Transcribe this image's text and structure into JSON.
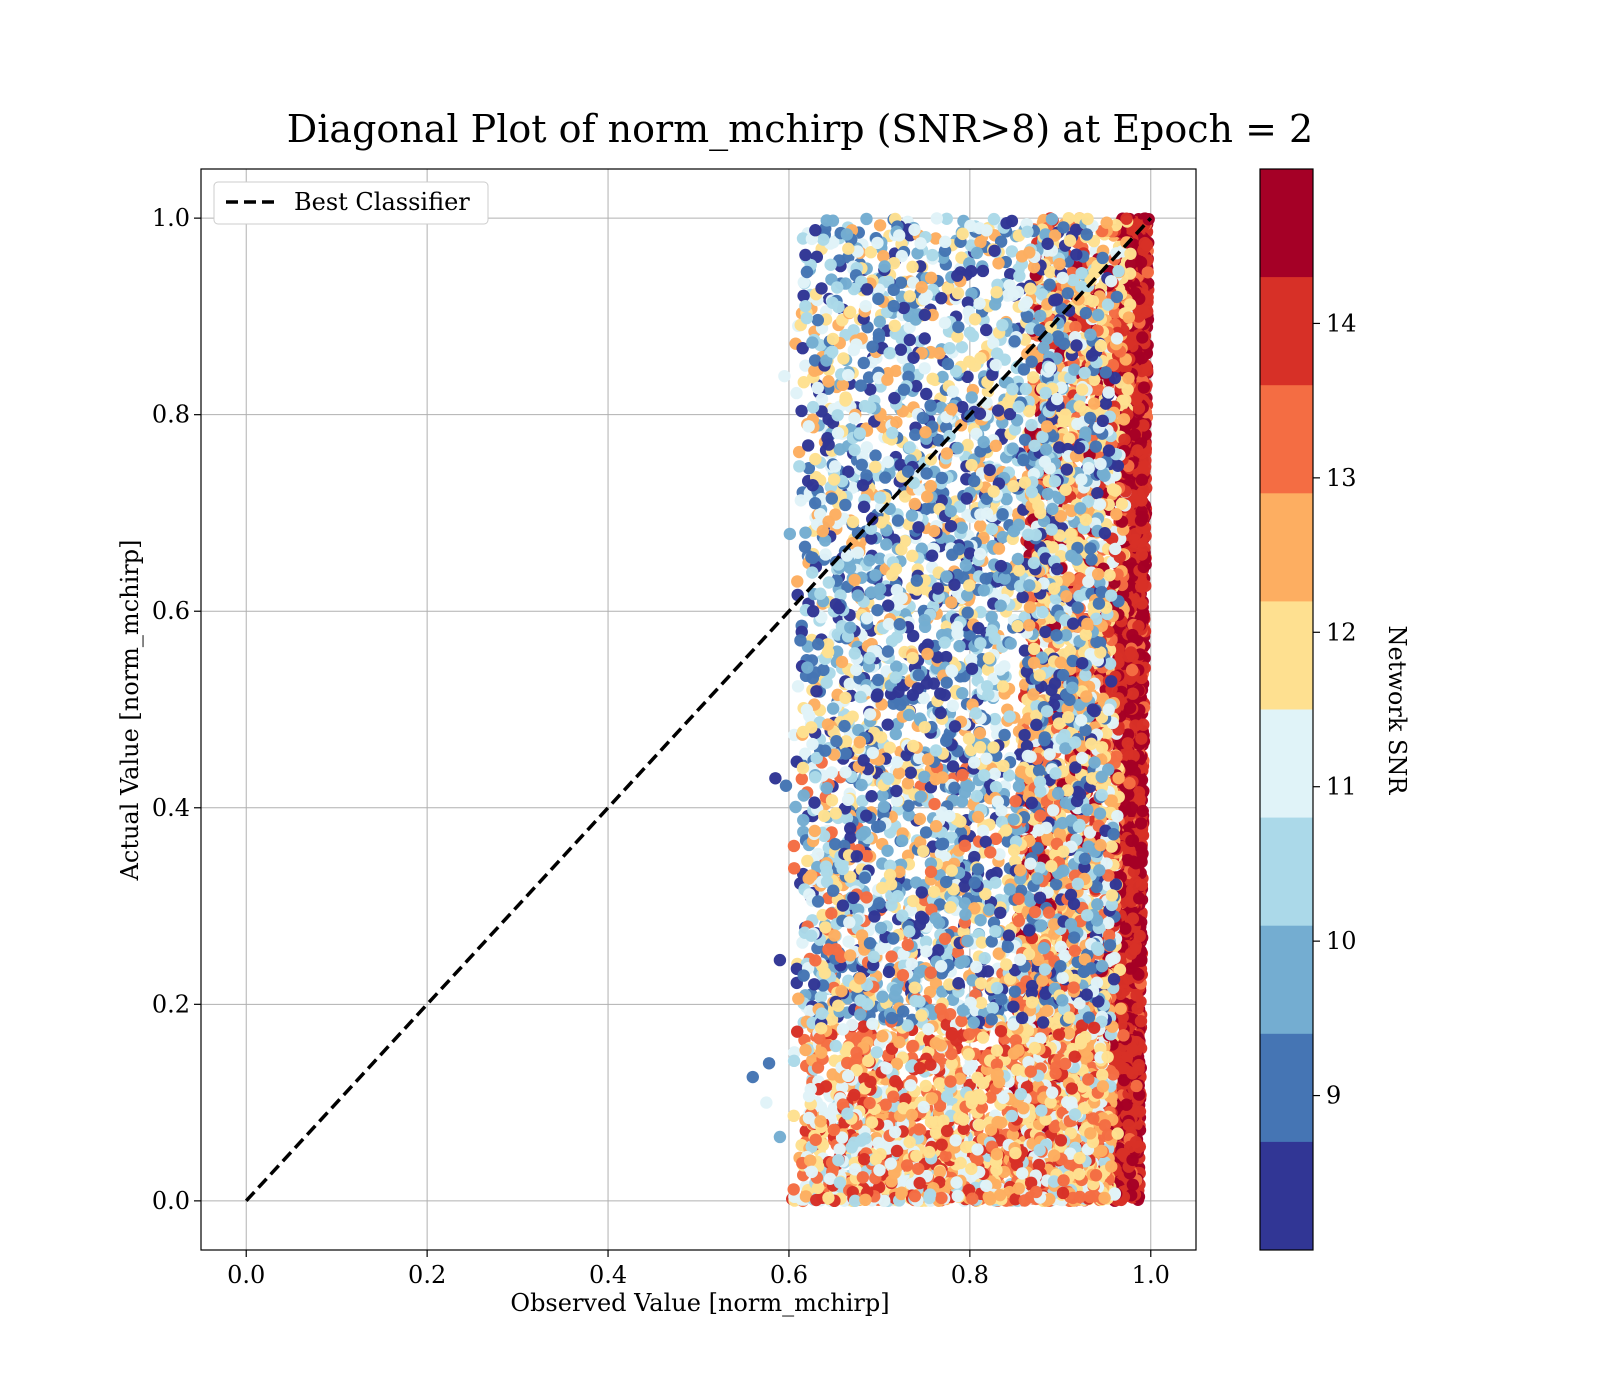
{
  "chart_data": {
    "type": "scatter",
    "title": "Diagonal Plot of norm_mchirp (SNR>8) at Epoch = 2",
    "xlabel": "Observed Value [norm_mchirp]",
    "ylabel": "Actual Value [norm_mchirp]",
    "xlim": [
      -0.05,
      1.05
    ],
    "ylim": [
      -0.05,
      1.05
    ],
    "x_ticks": [
      "0.0",
      "0.2",
      "0.4",
      "0.6",
      "0.8",
      "1.0"
    ],
    "y_ticks": [
      "0.0",
      "0.2",
      "0.4",
      "0.6",
      "0.8",
      "1.0"
    ],
    "grid": true,
    "legend": {
      "location": "upper-left",
      "entries": [
        {
          "label": "Best Classifier",
          "style": "dashed",
          "color": "#000000"
        }
      ]
    },
    "reference_line": {
      "name": "Best Classifier",
      "x": [
        0.0,
        1.0
      ],
      "y": [
        0.0,
        1.0
      ],
      "style": "dashed",
      "color": "#000000"
    },
    "colorbar": {
      "label": "Network SNR",
      "range": [
        8,
        15
      ],
      "tick_values": [
        9,
        10,
        11,
        12,
        13,
        14
      ],
      "tick_labels": [
        "9",
        "10",
        "11",
        "12",
        "13",
        "14"
      ],
      "colors": [
        "#313695",
        "#4575b4",
        "#74add1",
        "#abd9e9",
        "#e0f3f8",
        "#fee090",
        "#fdae61",
        "#f46d43",
        "#d73027",
        "#a50026"
      ]
    },
    "scatter_summary": {
      "x_range": [
        0.56,
        1.0
      ],
      "y_range": [
        0.0,
        1.0
      ],
      "color_by": "Network SNR",
      "note": "Dense cloud near x≈0.97–1.0 dominated by high SNR; lower SNR points spread toward x≈0.6–0.9."
    }
  }
}
